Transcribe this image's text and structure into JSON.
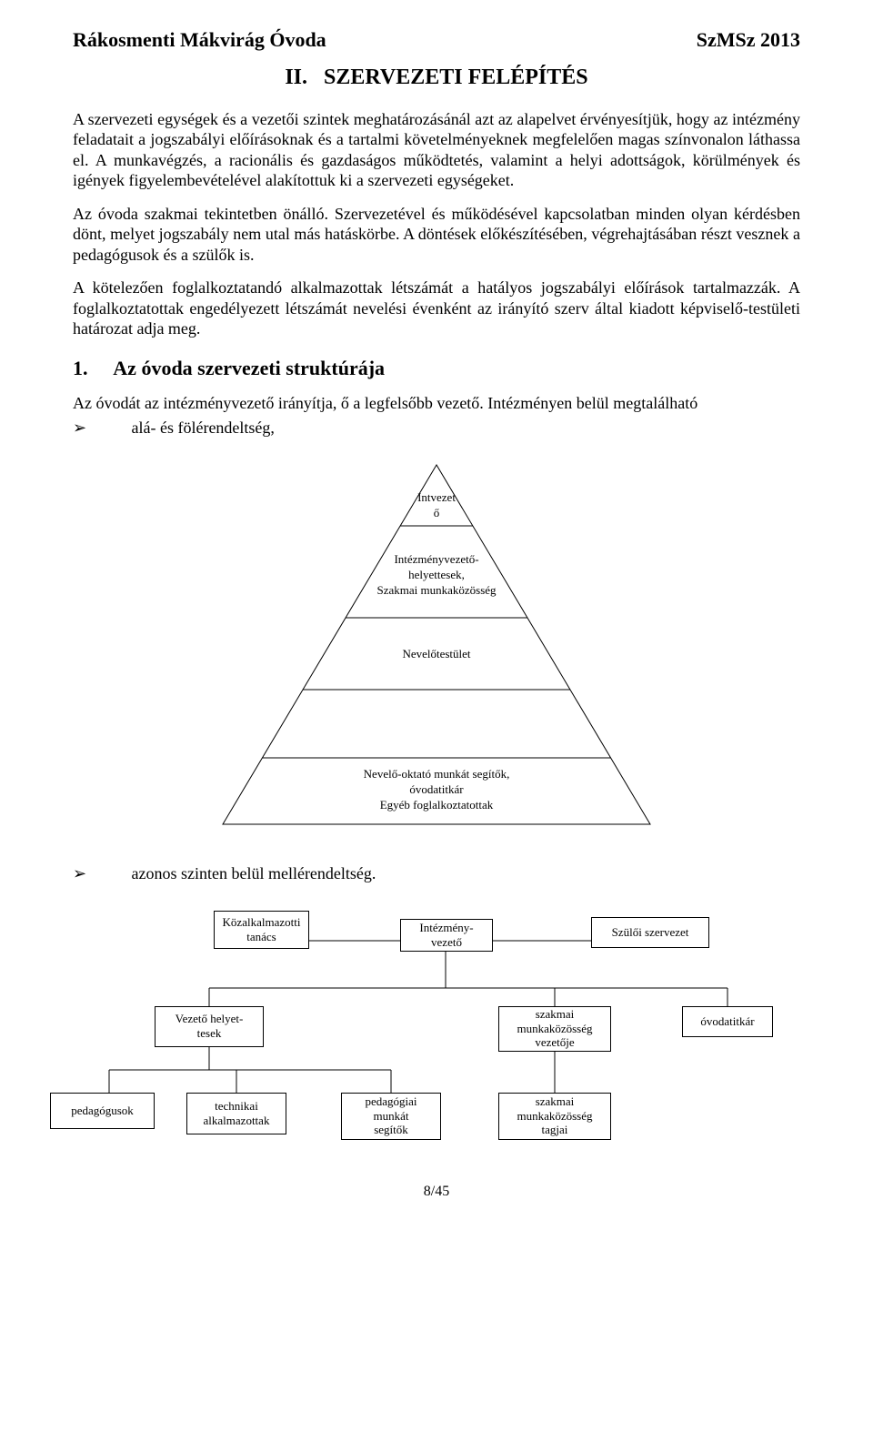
{
  "header": {
    "left": "Rákosmenti Mákvirág Óvoda",
    "right": "SzMSz 2013"
  },
  "section_number": "II.",
  "section_title": "SZERVEZETI FELÉPÍTÉS",
  "paragraphs": [
    "A szervezeti egységek és a vezetői szintek meghatározásánál azt az alapelvet érvényesítjük, hogy az intézmény feladatait a jogszabályi előírásoknak és a tartalmi követelményeknek megfelelően magas színvonalon láthassa el. A munkavégzés, a racionális és gazdaságos működtetés, valamint a helyi adottságok, körülmények és igények figyelembevételével alakítottuk ki a szervezeti egységeket.",
    "Az óvoda szakmai tekintetben önálló. Szervezetével és működésével kapcsolatban minden olyan kérdésben dönt, melyet jogszabály nem utal más hatáskörbe. A döntések előkészítésében, végrehajtásában részt vesznek a pedagógusok és a szülők is.",
    "A kötelezően foglalkoztatandó alkalmazottak létszámát a hatályos jogszabályi előírások tartalmazzák. A foglalkoztatottak engedélyezett létszámát nevelési évenként az irányító szerv által kiadott képviselő-testületi határozat adja meg."
  ],
  "sub1": {
    "num": "1.",
    "title": "Az óvoda szervezeti struktúrája"
  },
  "intro_line": "Az óvodát az intézményvezető irányítja, ő a legfelsőbb vezető. Intézményen belül megtalálható",
  "bullet1": "alá- és fölérendeltség,",
  "bullet2": "azonos szinten belül mellérendeltség.",
  "pyramid": {
    "levels": [
      "Intvezet\nő",
      "Intézményvezető-\nhelyettesek,\nSzakmai munkaközösség",
      "Nevelőtestület",
      "Nevelő-oktató munkát segítők,\nóvodatitkár\nEgyéb foglalkoztatottak"
    ]
  },
  "org": {
    "row1": [
      "Közalkalmazotti\ntanács",
      "Intézmény-\nvezető",
      "Szülői szervezet"
    ],
    "row2": [
      "Vezető helyet-\ntesek",
      "szakmai\nmunkaközösség\nvezetője",
      "óvodatitkár"
    ],
    "row3": [
      "pedagógusok",
      "technikai\nalkalmazottak",
      "pedagógiai\nmunkát\nsegítők",
      "szakmai\nmunkaközösség\ntagjai"
    ]
  },
  "footer": "8/45",
  "colors": {
    "stroke": "#000000",
    "bg": "#ffffff"
  }
}
